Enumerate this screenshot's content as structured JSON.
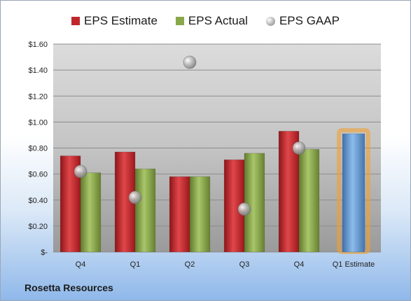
{
  "chart_data": {
    "type": "bar",
    "categories": [
      "Q4",
      "Q1",
      "Q2",
      "Q3",
      "Q4",
      "Q1 Estimate"
    ],
    "series": [
      {
        "name": "EPS Estimate",
        "color": "#c0272d",
        "values": [
          0.74,
          0.77,
          0.58,
          0.71,
          0.93,
          null
        ]
      },
      {
        "name": "EPS Actual",
        "color": "#8aa84a",
        "values": [
          0.61,
          0.64,
          0.58,
          0.76,
          0.79,
          null
        ]
      },
      {
        "name": "EPS GAAP",
        "color": "#a6a6a6",
        "marker": "circle",
        "values": [
          0.62,
          0.42,
          1.46,
          0.33,
          0.8,
          null
        ]
      },
      {
        "name": "Q1 Estimate",
        "color": "#6a9fd8",
        "highlight": "#f0a030",
        "values": [
          null,
          null,
          null,
          null,
          null,
          0.91
        ]
      }
    ],
    "ylim": [
      0,
      1.6
    ],
    "yticks": [
      "$-",
      "$0.20",
      "$0.40",
      "$0.60",
      "$0.80",
      "$1.00",
      "$1.20",
      "$1.40",
      "$1.60"
    ],
    "grid": true,
    "legend_position": "top"
  },
  "footer": {
    "company": "Rosetta Resources"
  }
}
